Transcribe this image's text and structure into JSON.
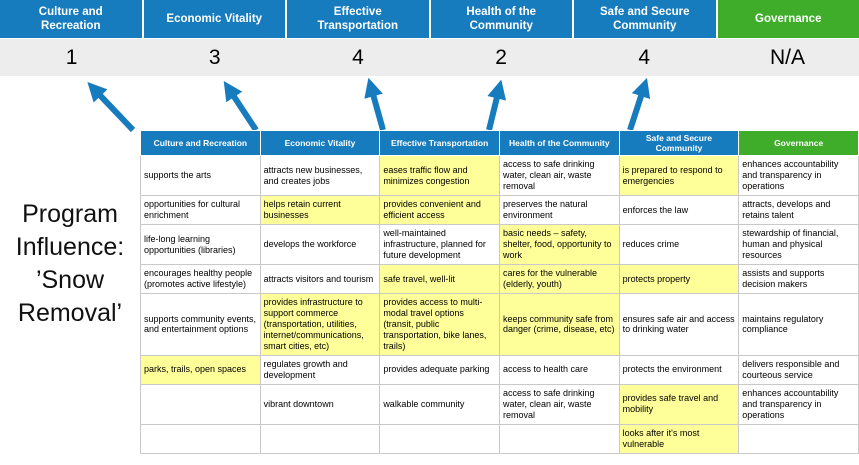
{
  "title": "Program Influence: ’Snow Removal’",
  "colors": {
    "category_blue": "#177CBE",
    "governance_green": "#3FAD2A",
    "highlight_yellow": "#FFFF99",
    "score_band_gray": "#EDEDED",
    "arrow_blue": "#177CBE"
  },
  "banner": {
    "columns": [
      {
        "label": "Culture and Recreation",
        "score": "1",
        "theme": "blue"
      },
      {
        "label": "Economic Vitality",
        "score": "3",
        "theme": "blue"
      },
      {
        "label": "Effective Transportation",
        "score": "4",
        "theme": "blue"
      },
      {
        "label": "Health of the Community",
        "score": "2",
        "theme": "blue"
      },
      {
        "label": "Safe and Secure Community",
        "score": "4",
        "theme": "blue"
      },
      {
        "label": "Governance",
        "score": "N/A",
        "theme": "green"
      }
    ]
  },
  "matrix": {
    "headers": [
      {
        "label": "Culture and Recreation",
        "theme": "blue"
      },
      {
        "label": "Economic Vitality",
        "theme": "blue"
      },
      {
        "label": "Effective Transportation",
        "theme": "blue"
      },
      {
        "label": "Health of the Community",
        "theme": "blue"
      },
      {
        "label": "Safe and Secure Community",
        "theme": "blue"
      },
      {
        "label": "Governance",
        "theme": "green"
      }
    ],
    "rows": [
      [
        {
          "text": "supports the arts",
          "highlight": false
        },
        {
          "text": "attracts new businesses, and creates jobs",
          "highlight": false
        },
        {
          "text": "eases traffic flow and minimizes congestion",
          "highlight": true
        },
        {
          "text": "access to safe drinking water, clean air, waste removal",
          "highlight": false
        },
        {
          "text": "is prepared to respond to emergencies",
          "highlight": true
        },
        {
          "text": "enhances accountability and transparency in operations",
          "highlight": false
        }
      ],
      [
        {
          "text": "opportunities for cultural enrichment",
          "highlight": false
        },
        {
          "text": "helps retain current businesses",
          "highlight": true
        },
        {
          "text": "provides convenient and efficient access",
          "highlight": true
        },
        {
          "text": "preserves the natural environment",
          "highlight": false
        },
        {
          "text": "enforces the law",
          "highlight": false
        },
        {
          "text": "attracts, develops and retains talent",
          "highlight": false
        }
      ],
      [
        {
          "text": "life-long learning opportunities (libraries)",
          "highlight": false
        },
        {
          "text": "develops the workforce",
          "highlight": false
        },
        {
          "text": "well-maintained infrastructure, planned for future development",
          "highlight": false
        },
        {
          "text": "basic needs – safety, shelter, food, opportunity to work",
          "highlight": true
        },
        {
          "text": "reduces crime",
          "highlight": false
        },
        {
          "text": "stewardship of financial, human and physical resources",
          "highlight": false
        }
      ],
      [
        {
          "text": "encourages healthy people (promotes active lifestyle)",
          "highlight": false
        },
        {
          "text": "attracts visitors and tourism",
          "highlight": false
        },
        {
          "text": "safe travel, well-lit",
          "highlight": true
        },
        {
          "text": "cares for the vulnerable (elderly, youth)",
          "highlight": true
        },
        {
          "text": "protects property",
          "highlight": true
        },
        {
          "text": "assists and supports decision makers",
          "highlight": false
        }
      ],
      [
        {
          "text": "supports community events, and entertainment options",
          "highlight": false
        },
        {
          "text": "provides infrastructure to support commerce (transportation, utilities, internet/communications, smart cities, etc)",
          "highlight": true
        },
        {
          "text": "provides access to multi-modal travel options (transit, public transportation, bike lanes, trails)",
          "highlight": true
        },
        {
          "text": "keeps community safe from danger (crime, disease, etc)",
          "highlight": true
        },
        {
          "text": "ensures safe air and access to drinking water",
          "highlight": false
        },
        {
          "text": "maintains regulatory compliance",
          "highlight": false
        }
      ],
      [
        {
          "text": "parks, trails, open spaces",
          "highlight": true
        },
        {
          "text": "regulates growth and development",
          "highlight": false
        },
        {
          "text": "provides adequate parking",
          "highlight": false
        },
        {
          "text": "access to health care",
          "highlight": false
        },
        {
          "text": "protects the environment",
          "highlight": false
        },
        {
          "text": "delivers responsible and courteous service",
          "highlight": false
        }
      ],
      [
        {
          "text": "",
          "highlight": false
        },
        {
          "text": "vibrant downtown",
          "highlight": false
        },
        {
          "text": "walkable community",
          "highlight": false
        },
        {
          "text": "access to safe drinking water, clean air, waste removal",
          "highlight": false
        },
        {
          "text": "provides safe travel and mobility",
          "highlight": true
        },
        {
          "text": "enhances accountability and transparency in operations",
          "highlight": false
        }
      ],
      [
        {
          "text": "",
          "highlight": false
        },
        {
          "text": "",
          "highlight": false
        },
        {
          "text": "",
          "highlight": false
        },
        {
          "text": "",
          "highlight": false
        },
        {
          "text": "looks after it's most vulnerable",
          "highlight": true
        },
        {
          "text": "",
          "highlight": false
        }
      ]
    ]
  }
}
